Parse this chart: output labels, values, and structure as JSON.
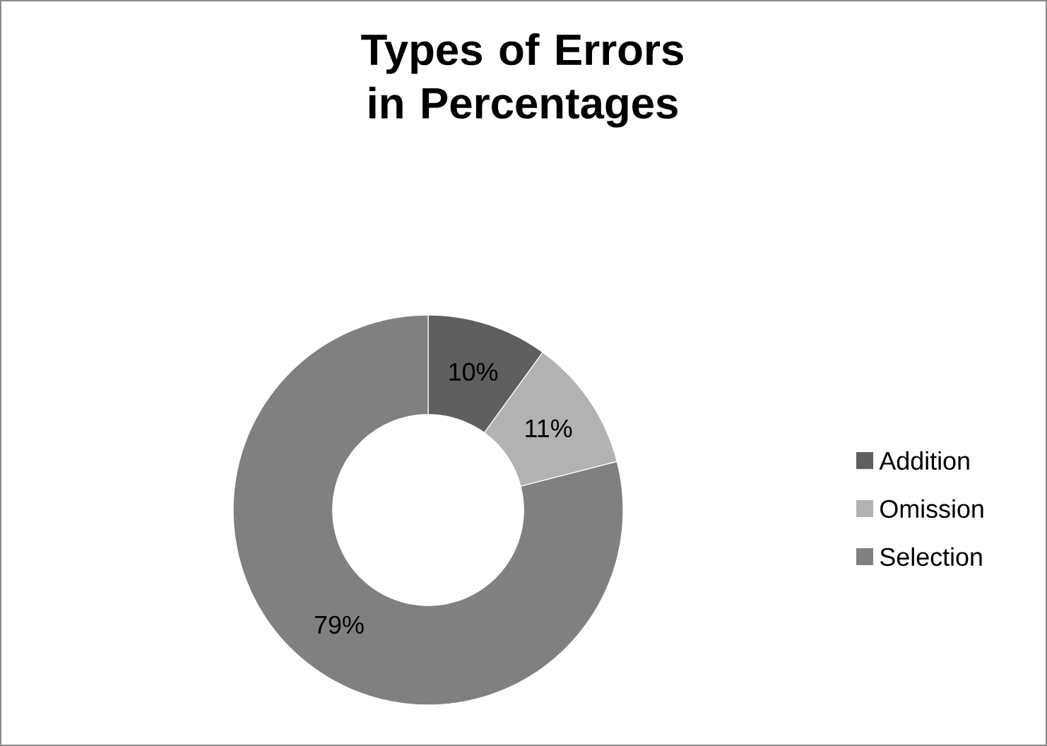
{
  "chart_data": {
    "type": "donut",
    "title": "Types of Errors in Percentages",
    "categories": [
      "Addition",
      "Omission",
      "Selection"
    ],
    "values": [
      10,
      11,
      79
    ],
    "colors": [
      "#5f5f5f",
      "#b2b2b2",
      "#808080"
    ],
    "value_labels": [
      "10%",
      "11%",
      "79%"
    ],
    "legend": "right"
  }
}
